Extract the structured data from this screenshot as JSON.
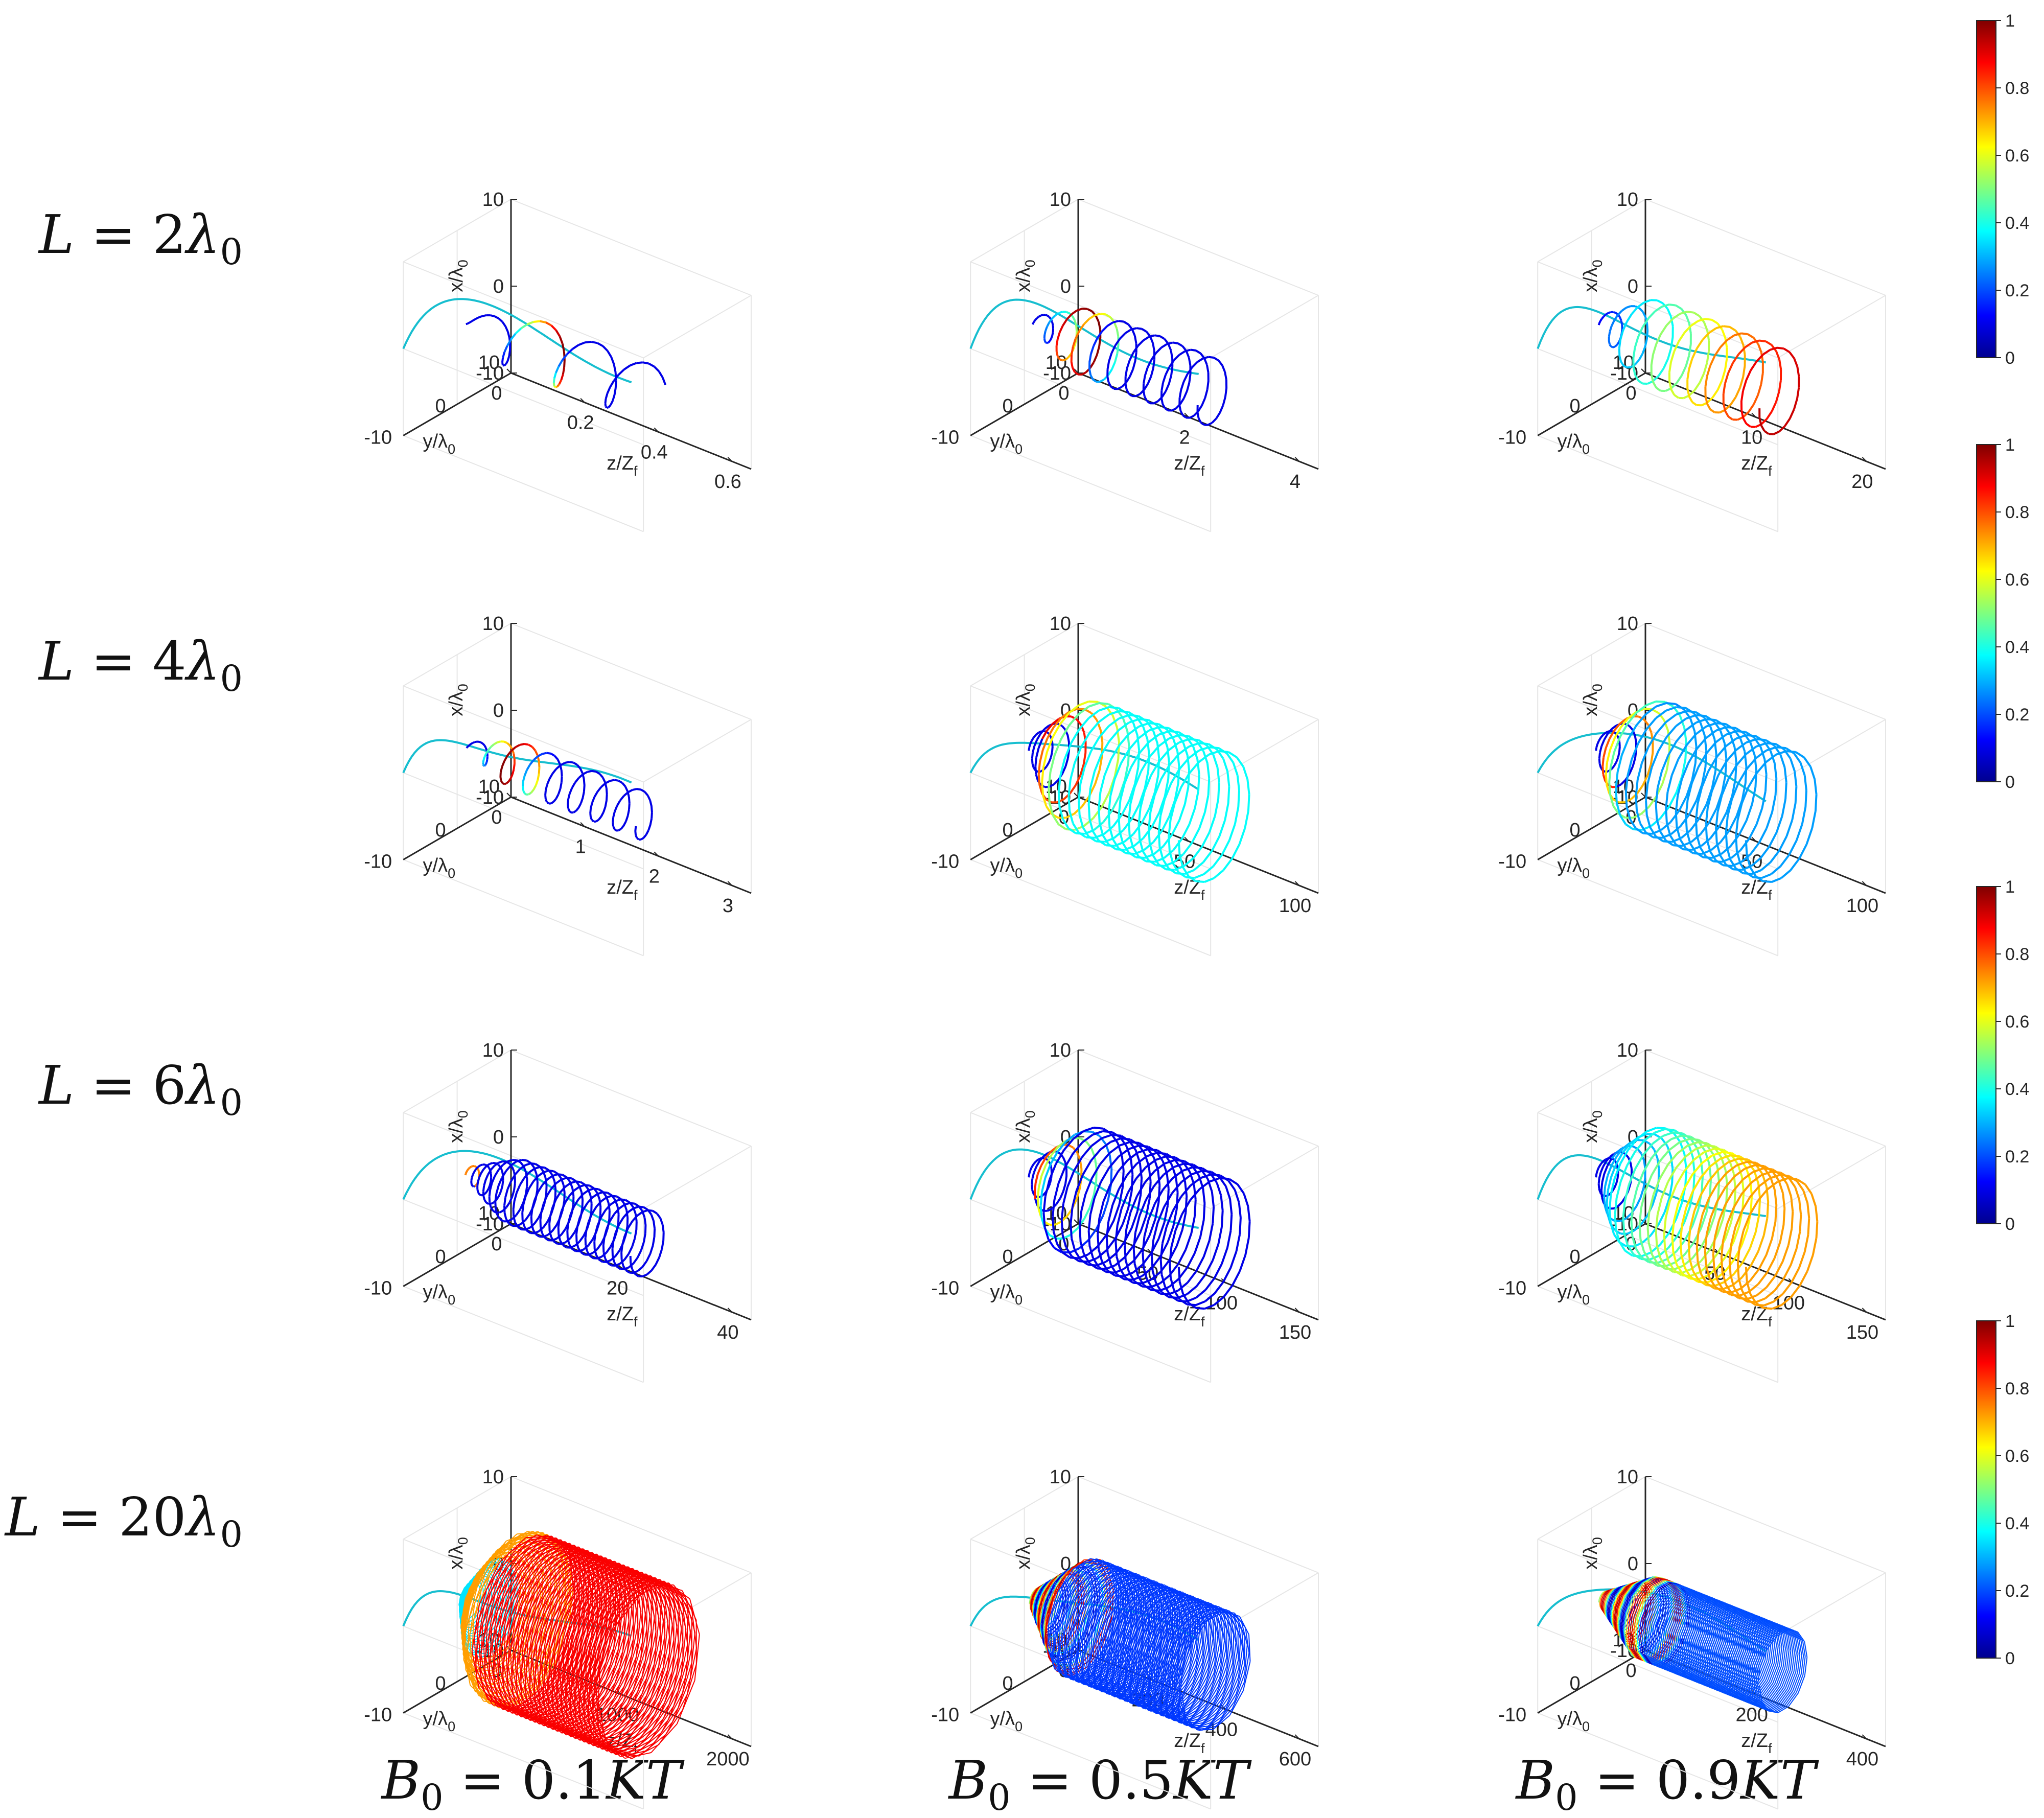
{
  "row_labels": [
    {
      "pre": "L = ",
      "num": "2",
      "sym": "λ",
      "sub": "0"
    },
    {
      "pre": "L = ",
      "num": "4",
      "sym": "λ",
      "sub": "0"
    },
    {
      "pre": "L = ",
      "num": "6",
      "sym": "λ",
      "sub": "0"
    },
    {
      "pre": "L = ",
      "num": "20",
      "sym": "λ",
      "sub": "0"
    }
  ],
  "col_labels": [
    {
      "sym": "B",
      "sub": "0",
      "post": " = 0.1",
      "unit": "KT"
    },
    {
      "sym": "B",
      "sub": "0",
      "post": " = 0.5",
      "unit": "KT"
    },
    {
      "sym": "B",
      "sub": "0",
      "post": " = 0.9",
      "unit": "KT"
    }
  ],
  "axis_labels": {
    "x": {
      "main": "x/λ",
      "sub": "0"
    },
    "y": {
      "main": "y/λ",
      "sub": "0"
    },
    "z": {
      "main": "z/Z",
      "sub": "f"
    }
  },
  "colorbar": {
    "colormap": "jet",
    "ticks": [
      "0",
      "0.2",
      "0.4",
      "0.6",
      "0.8",
      "1"
    ],
    "range": [
      0,
      1
    ]
  },
  "colors": {
    "projection_line": "#17BECF",
    "axis": "#262626",
    "grid": "#e6e6e6"
  },
  "chart_data": [
    {
      "type": "line",
      "panel": "L=2λ0, B0=0.1KT",
      "xlabel": "x/λ0",
      "ylabel": "y/λ0",
      "zlabel": "z/Zf",
      "xlim": [
        -10,
        10
      ],
      "ylim": [
        -10,
        10
      ],
      "zlim": [
        0,
        0.6
      ],
      "x_ticks": [
        "-10",
        "0",
        "10"
      ],
      "y_ticks": [
        "-10",
        "0",
        "10"
      ],
      "z_ticks": [
        "0",
        "0.2",
        "0.4",
        "0.6"
      ],
      "turns": 3.5,
      "radius": 3,
      "color_profile": "peak_middle",
      "line_width": 4
    },
    {
      "type": "line",
      "panel": "L=2λ0, B0=0.5KT",
      "xlabel": "x/λ0",
      "ylabel": "y/λ0",
      "zlabel": "z/Zf",
      "xlim": [
        -10,
        10
      ],
      "ylim": [
        -10,
        10
      ],
      "zlim": [
        0,
        4
      ],
      "x_ticks": [
        "-10",
        "0",
        "10"
      ],
      "y_ticks": [
        "-10",
        "0",
        "10"
      ],
      "z_ticks": [
        "0",
        "2",
        "4"
      ],
      "turns": 10,
      "radius": 3.5,
      "color_profile": "peak_early",
      "line_width": 4
    },
    {
      "type": "line",
      "panel": "L=2λ0, B0=0.9KT",
      "xlabel": "x/λ0",
      "ylabel": "y/λ0",
      "zlabel": "z/Zf",
      "xlim": [
        -10,
        10
      ],
      "ylim": [
        -10,
        10
      ],
      "zlim": [
        0,
        20
      ],
      "x_ticks": [
        "-10",
        "0",
        "10"
      ],
      "y_ticks": [
        "-10",
        "0",
        "10"
      ],
      "z_ticks": [
        "0",
        "10",
        "20"
      ],
      "turns": 10,
      "radius": 4.5,
      "color_profile": "rising",
      "line_width": 4
    },
    {
      "type": "line",
      "panel": "L=4λ0, B0=0.1KT",
      "xlabel": "x/λ0",
      "ylabel": "y/λ0",
      "zlabel": "z/Zf",
      "xlim": [
        -10,
        10
      ],
      "ylim": [
        -10,
        10
      ],
      "zlim": [
        0,
        3
      ],
      "x_ticks": [
        "-10",
        "0",
        "10"
      ],
      "y_ticks": [
        "-10",
        "0",
        "10"
      ],
      "z_ticks": [
        "0",
        "1",
        "2",
        "3"
      ],
      "turns": 8,
      "radius": 2.5,
      "color_profile": "peak_early",
      "line_width": 4
    },
    {
      "type": "line",
      "panel": "L=4λ0, B0=0.5KT",
      "xlabel": "x/λ0",
      "ylabel": "y/λ0",
      "zlabel": "z/Zf",
      "xlim": [
        -10,
        10
      ],
      "ylim": [
        -10,
        10
      ],
      "zlim": [
        0,
        100
      ],
      "x_ticks": [
        "-10",
        "0",
        "10"
      ],
      "y_ticks": [
        "-10",
        "0",
        "10"
      ],
      "z_ticks": [
        "0",
        "50",
        "100"
      ],
      "turns": 18,
      "radius": 7,
      "color_profile": "peak_then_cyan",
      "line_width": 4
    },
    {
      "type": "line",
      "panel": "L=4λ0, B0=0.9KT",
      "xlabel": "x/λ0",
      "ylabel": "y/λ0",
      "zlabel": "z/Zf",
      "xlim": [
        -10,
        10
      ],
      "ylim": [
        -10,
        10
      ],
      "zlim": [
        0,
        100
      ],
      "x_ticks": [
        "-10",
        "0",
        "10"
      ],
      "y_ticks": [
        "-10",
        "0",
        "10"
      ],
      "z_ticks": [
        "0",
        "50",
        "100"
      ],
      "turns": 18,
      "radius": 7,
      "color_profile": "peak_then_blue",
      "line_width": 4
    },
    {
      "type": "line",
      "panel": "L=6λ0, B0=0.1KT",
      "xlabel": "x/λ0",
      "ylabel": "y/λ0",
      "zlabel": "z/Zf",
      "xlim": [
        -10,
        10
      ],
      "ylim": [
        -10,
        10
      ],
      "zlim": [
        0,
        40
      ],
      "x_ticks": [
        "-10",
        "0",
        "10"
      ],
      "y_ticks": [
        "-10",
        "0",
        "10"
      ],
      "z_ticks": [
        "0",
        "20",
        "40"
      ],
      "turns": 20,
      "radius": 3.5,
      "color_profile": "blue",
      "line_width": 4
    },
    {
      "type": "line",
      "panel": "L=6λ0, B0=0.5KT",
      "xlabel": "x/λ0",
      "ylabel": "y/λ0",
      "zlabel": "z/Zf",
      "xlim": [
        -10,
        10
      ],
      "ylim": [
        -10,
        10
      ],
      "zlim": [
        0,
        150
      ],
      "x_ticks": [
        "-10",
        "0",
        "10"
      ],
      "y_ticks": [
        "-10",
        "0",
        "10"
      ],
      "z_ticks": [
        "0",
        "50",
        "100",
        "150"
      ],
      "turns": 20,
      "radius": 7,
      "color_profile": "peak_then_blue_dark",
      "line_width": 4
    },
    {
      "type": "line",
      "panel": "L=6λ0, B0=0.9KT",
      "xlabel": "x/λ0",
      "ylabel": "y/λ0",
      "zlabel": "z/Zf",
      "xlim": [
        -10,
        10
      ],
      "ylim": [
        -10,
        10
      ],
      "zlim": [
        0,
        150
      ],
      "x_ticks": [
        "-10",
        "0",
        "10"
      ],
      "y_ticks": [
        "-10",
        "0",
        "10"
      ],
      "z_ticks": [
        "0",
        "50",
        "100",
        "150"
      ],
      "turns": 22,
      "radius": 7,
      "color_profile": "rise_to_orange",
      "line_width": 4
    },
    {
      "type": "line",
      "panel": "L=20λ0, B0=0.1KT",
      "xlabel": "x/λ0",
      "ylabel": "y/λ0",
      "zlabel": "z/Zf",
      "xlim": [
        -10,
        10
      ],
      "ylim": [
        -10,
        10
      ],
      "zlim": [
        0,
        2000
      ],
      "x_ticks": [
        "-10",
        "0",
        "10"
      ],
      "y_ticks": [
        "-10",
        "0",
        "10"
      ],
      "z_ticks": [
        "0",
        "1000",
        "2000"
      ],
      "turns": 120,
      "radius": 9.5,
      "color_profile": "red_dense",
      "line_width": 2
    },
    {
      "type": "line",
      "panel": "L=20λ0, B0=0.5KT",
      "xlabel": "x/λ0",
      "ylabel": "y/λ0",
      "zlabel": "z/Zf",
      "xlim": [
        -10,
        10
      ],
      "ylim": [
        -10,
        10
      ],
      "zlim": [
        0,
        600
      ],
      "x_ticks": [
        "-10",
        "0",
        "10"
      ],
      "y_ticks": [
        "-10",
        "0",
        "10"
      ],
      "z_ticks": [
        "0",
        "200",
        "400",
        "600"
      ],
      "turns": 110,
      "radius": 6.5,
      "color_profile": "striped_blue",
      "line_width": 2
    },
    {
      "type": "line",
      "panel": "L=20λ0, B0=0.9KT",
      "xlabel": "x/λ0",
      "ylabel": "y/λ0",
      "zlabel": "z/Zf",
      "xlim": [
        -10,
        10
      ],
      "ylim": [
        -10,
        10
      ],
      "zlim": [
        0,
        400
      ],
      "x_ticks": [
        "-10",
        "0",
        "10"
      ],
      "y_ticks": [
        "-10",
        "0",
        "10"
      ],
      "z_ticks": [
        "0",
        "200",
        "400"
      ],
      "turns": 100,
      "radius": 4.5,
      "color_profile": "striped_blue_short",
      "line_width": 2
    }
  ]
}
